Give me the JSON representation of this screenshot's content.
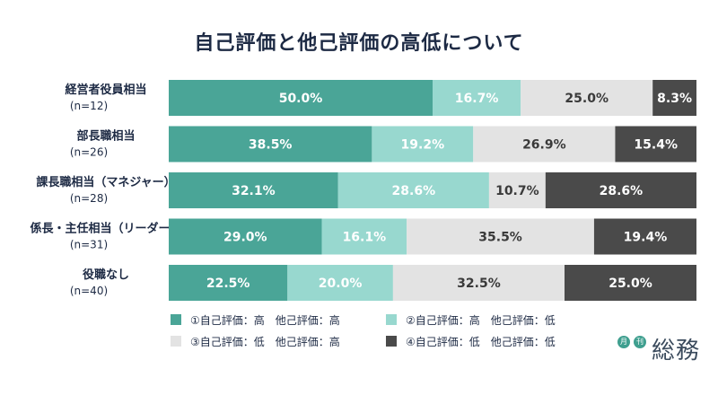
{
  "colors": {
    "high_high": "#4aa597",
    "high_low": "#98d8cf",
    "low_high": "#e3e3e3",
    "low_low": "#4a4a4a",
    "title": "#1d2a44",
    "brand": "#3f9f8f"
  },
  "legend": [
    {
      "label": "①自己評価：高　他己評価：高",
      "color_key": "high_high"
    },
    {
      "label": "②自己評価：高　他己評価：低",
      "color_key": "high_low"
    },
    {
      "label": "③自己評価：低　他己評価：高",
      "color_key": "low_high"
    },
    {
      "label": "④自己評価：低　他己評価：低",
      "color_key": "low_low"
    }
  ],
  "brand": {
    "badge_1": "月",
    "badge_2": "刊",
    "name": "総務"
  },
  "chart_data": {
    "type": "bar",
    "orientation": "horizontal",
    "stacked": true,
    "percent_stacked": true,
    "title": "自己評価と他己評価の高低について",
    "categories": [
      {
        "name": "経営者役員相当",
        "n": "(n=12)"
      },
      {
        "name": "部長職相当",
        "n": "(n=26)"
      },
      {
        "name": "課長職相当（マネジャー）",
        "n": "(n=28)"
      },
      {
        "name": "係長・主任相当（リーダー）",
        "n": "(n=31)"
      },
      {
        "name": "役職なし",
        "n": "(n=40)"
      }
    ],
    "series": [
      {
        "name": "①自己評価：高　他己評価：高",
        "color_key": "high_high",
        "values": [
          50.0,
          38.5,
          32.1,
          29.0,
          22.5
        ]
      },
      {
        "name": "②自己評価：高　他己評価：低",
        "color_key": "high_low",
        "values": [
          16.7,
          19.2,
          28.6,
          16.1,
          20.0
        ]
      },
      {
        "name": "③自己評価：低　他己評価：高",
        "color_key": "low_high",
        "values": [
          25.0,
          26.9,
          10.7,
          35.5,
          32.5
        ]
      },
      {
        "name": "④自己評価：低　他己評価：低",
        "color_key": "low_low",
        "values": [
          8.3,
          15.4,
          28.6,
          19.4,
          25.0
        ]
      }
    ],
    "value_labels": [
      [
        "50.0%",
        "16.7%",
        "25.0%",
        "8.3%"
      ],
      [
        "38.5%",
        "19.2%",
        "26.9%",
        "15.4%"
      ],
      [
        "32.1%",
        "28.6%",
        "10.7%",
        "28.6%"
      ],
      [
        "29.0%",
        "16.1%",
        "35.5%",
        "19.4%"
      ],
      [
        "22.5%",
        "20.0%",
        "32.5%",
        "25.0%"
      ]
    ],
    "label_colors": [
      "#ffffff",
      "#ffffff",
      "#3a3a3a",
      "#ffffff"
    ],
    "xlim": [
      0,
      100
    ],
    "grid": false,
    "legend_position": "bottom"
  }
}
